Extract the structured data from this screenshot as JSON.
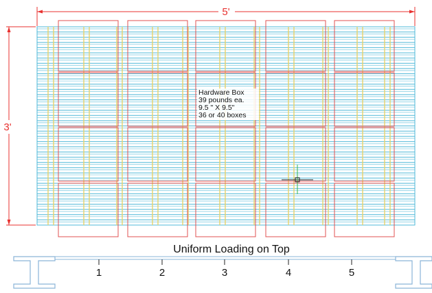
{
  "dimensions": {
    "width_label": "5'",
    "height_label": "3'"
  },
  "note": {
    "line1": "Hardware Box",
    "line2": "39 pounds ea.",
    "line3": "9.5 \" X 9.5\"",
    "line4": "36 or 40 boxes"
  },
  "section": {
    "title": "Uniform Loading on Top",
    "beam_numbers": [
      "1",
      "2",
      "3",
      "4",
      "5"
    ]
  },
  "colors": {
    "dimension": "#e8312f",
    "box_outline": "#e05050",
    "grating_bar": "#4fb8d8",
    "cross_bar": "#e8d26a",
    "cursor": "#3ab54a",
    "beam": "#8ab4d8",
    "text": "#111111"
  },
  "icons": {
    "cursor": "crosshair-cursor-icon",
    "beam": "i-beam-icon"
  }
}
